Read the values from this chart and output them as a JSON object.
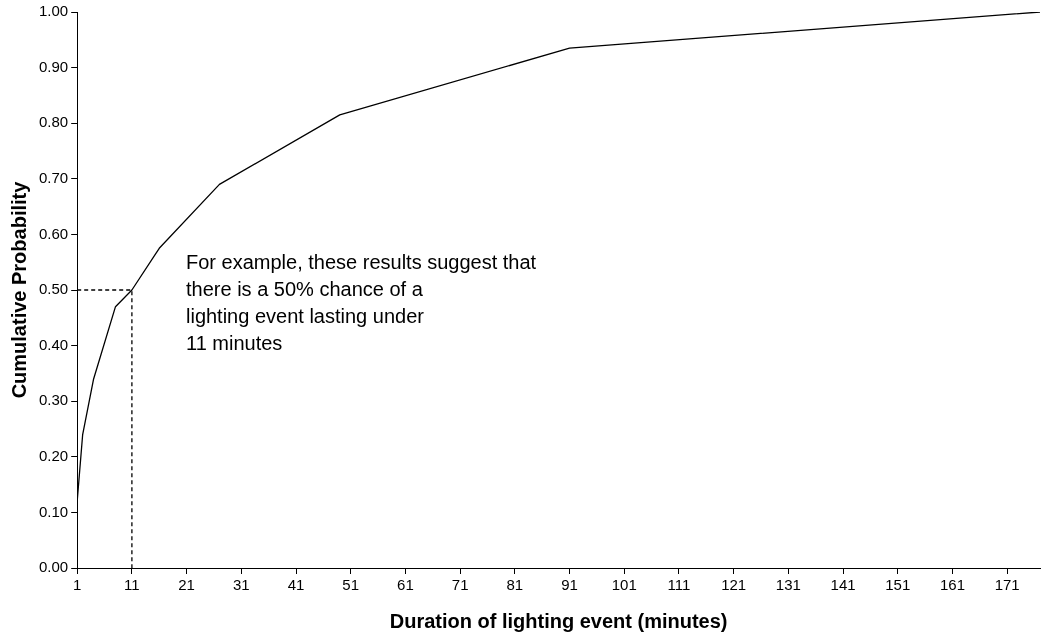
{
  "chart_data": {
    "type": "line",
    "xlabel": "Duration of lighting event (minutes)",
    "ylabel": "Cumulative Probability",
    "xlim": [
      1,
      177
    ],
    "xticks": [
      1,
      11,
      21,
      31,
      41,
      51,
      61,
      71,
      81,
      91,
      101,
      111,
      121,
      131,
      141,
      151,
      161,
      171
    ],
    "ylim": [
      0,
      1
    ],
    "yticks": [
      {
        "value": 0,
        "label": "0.00"
      },
      {
        "value": 0.1,
        "label": "0.10"
      },
      {
        "value": 0.2,
        "label": "0.20"
      },
      {
        "value": 0.3,
        "label": "0.30"
      },
      {
        "value": 0.4,
        "label": "0.40"
      },
      {
        "value": 0.5,
        "label": "0.50"
      },
      {
        "value": 0.6,
        "label": "0.60"
      },
      {
        "value": 0.7,
        "label": "0.70"
      },
      {
        "value": 0.8,
        "label": "0.80"
      },
      {
        "value": 0.9,
        "label": "0.90"
      },
      {
        "value": 1,
        "label": "1.00"
      }
    ],
    "grid": false,
    "legend": false,
    "marker": "none",
    "series": [
      {
        "color": "#000000",
        "line_style": "solid",
        "x": [
          1,
          2,
          4,
          8,
          11,
          16,
          27,
          49,
          91,
          177
        ],
        "values": [
          0.12,
          0.24,
          0.34,
          0.47,
          0.5,
          0.575,
          0.69,
          0.815,
          0.935,
          1.0
        ]
      },
      {
        "color": "#000000",
        "line_style": "dashed",
        "x": [
          1,
          11,
          11
        ],
        "values": [
          0.5,
          0.5,
          0
        ]
      }
    ],
    "annotations": [
      "For example, these results suggest that\nthere is a 50% chance of a\nlighting event lasting under\n11 minutes"
    ]
  }
}
